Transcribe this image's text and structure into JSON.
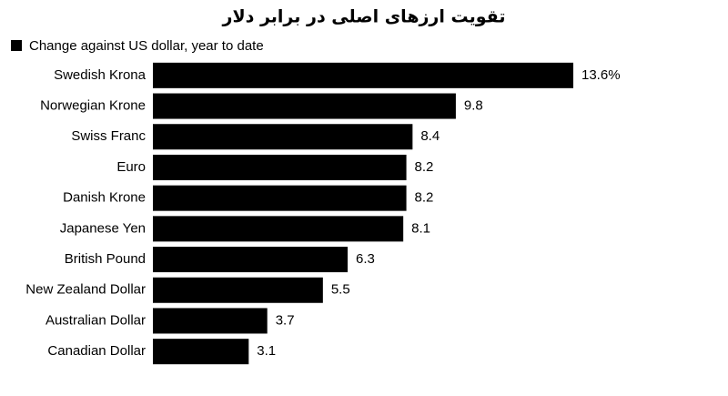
{
  "chart_data": {
    "type": "bar",
    "orientation": "horizontal",
    "title": "تقویت ارزهای اصلی در برابر دلار",
    "series": [
      {
        "name": "Change against US dollar, year to date",
        "color": "#000000",
        "values": [
          13.6,
          9.8,
          8.4,
          8.2,
          8.2,
          8.1,
          6.3,
          5.5,
          3.7,
          3.1
        ],
        "value_labels": [
          "13.6%",
          "9.8",
          "8.4",
          "8.2",
          "8.2",
          "8.1",
          "6.3",
          "5.5",
          "3.7",
          "3.1"
        ]
      }
    ],
    "categories": [
      "Swedish Krona",
      "Norwegian Krone",
      "Swiss Franc",
      "Euro",
      "Danish Krone",
      "Japanese Yen",
      "British Pound",
      "New Zealand Dollar",
      "Australian Dollar",
      "Canadian Dollar"
    ]
  }
}
